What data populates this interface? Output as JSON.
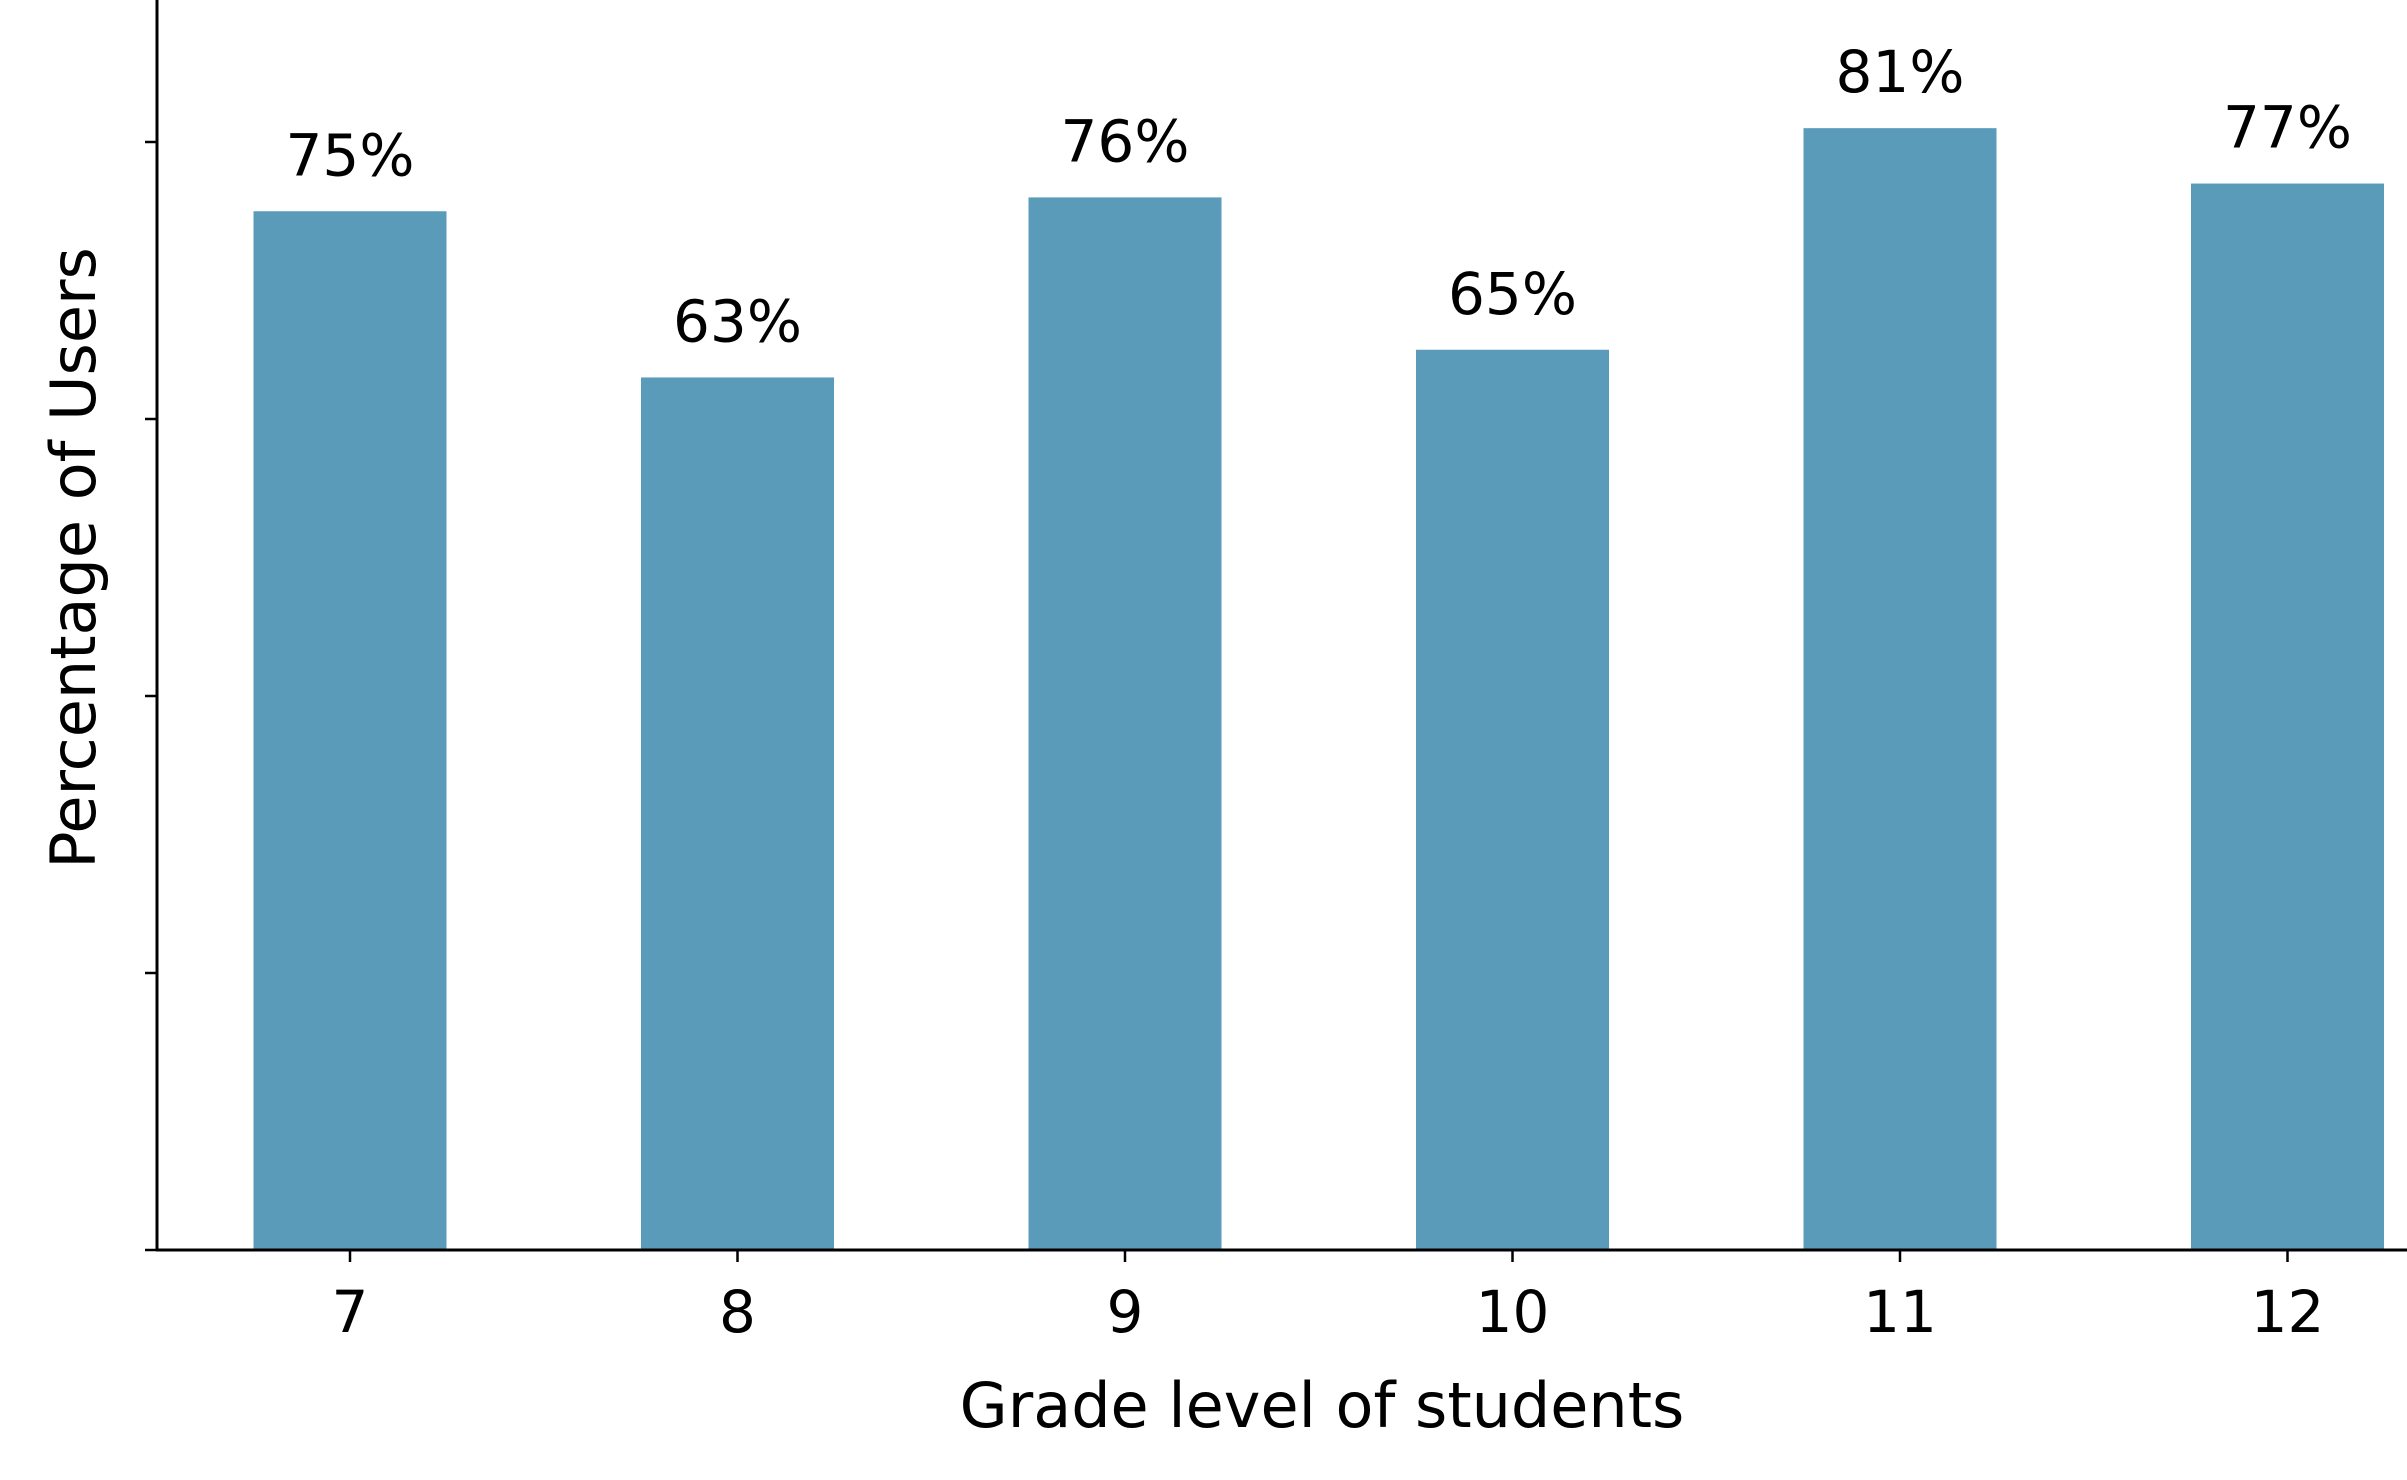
{
  "chart_data": {
    "type": "bar",
    "categories": [
      "7",
      "8",
      "9",
      "10",
      "11",
      "12"
    ],
    "values": [
      75,
      63,
      76,
      65,
      81,
      77
    ],
    "value_labels": [
      "75%",
      "63%",
      "76%",
      "65%",
      "81%",
      "77%"
    ],
    "title": "",
    "xlabel": "Grade level of students",
    "ylabel": "Percentage of Users",
    "ylim": [
      0,
      90
    ],
    "yticks": [
      0,
      20,
      40,
      60,
      80
    ],
    "ytick_labels_visible": false,
    "grid": false,
    "bar_color": "#5b9bba",
    "axis_color": "#000000"
  }
}
